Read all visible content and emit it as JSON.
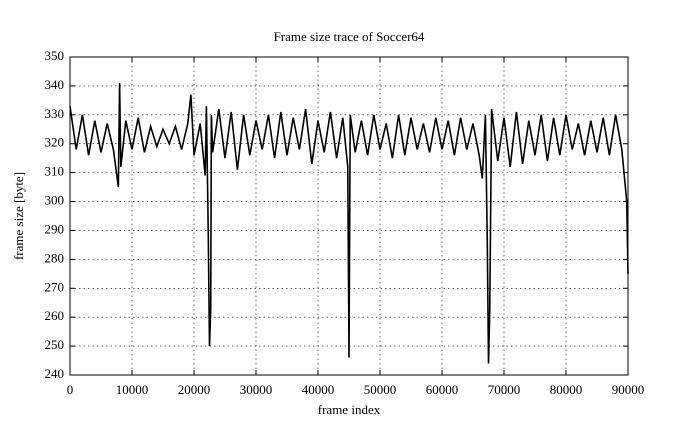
{
  "chart_data": {
    "type": "line",
    "title": "Frame size trace of Soccer64",
    "x_label": "frame index",
    "y_label": "frame size [byte]",
    "x": [
      0,
      1000,
      2000,
      3000,
      4000,
      5000,
      6000,
      7000,
      7800,
      8000,
      8200,
      9000,
      10000,
      11000,
      12000,
      13000,
      14000,
      15000,
      16000,
      17000,
      18000,
      19000,
      19500,
      20000,
      21000,
      21800,
      22000,
      22300,
      22500,
      22700,
      22800,
      23000,
      24000,
      25000,
      26000,
      27000,
      28000,
      29000,
      30000,
      31000,
      32000,
      33000,
      34000,
      35000,
      36000,
      37000,
      38000,
      39000,
      40000,
      41000,
      42000,
      43000,
      44000,
      44800,
      45000,
      45200,
      46000,
      47000,
      48000,
      49000,
      50000,
      51000,
      52000,
      53000,
      54000,
      55000,
      56000,
      57000,
      58000,
      59000,
      60000,
      61000,
      62000,
      63000,
      64000,
      65000,
      66000,
      66500,
      67000,
      67300,
      67500,
      67700,
      68000,
      69000,
      70000,
      71000,
      72000,
      73000,
      74000,
      75000,
      76000,
      77000,
      78000,
      79000,
      80000,
      81000,
      82000,
      83000,
      84000,
      85000,
      86000,
      87000,
      88000,
      89000,
      89800,
      90000
    ],
    "series": [
      {
        "color": "#000000",
        "values": [
          333,
          318,
          330,
          316,
          328,
          317,
          327,
          318,
          305,
          341,
          312,
          328,
          318,
          329,
          317,
          326,
          319,
          325,
          320,
          326,
          318,
          327,
          337,
          316,
          327,
          309,
          333,
          289,
          250,
          263,
          330,
          317,
          332,
          315,
          331,
          311,
          330,
          316,
          328,
          318,
          330,
          315,
          331,
          316,
          329,
          318,
          332,
          313,
          328,
          317,
          331,
          315,
          329,
          312,
          246,
          330,
          317,
          328,
          316,
          330,
          318,
          327,
          315,
          330,
          316,
          329,
          318,
          327,
          317,
          329,
          318,
          328,
          316,
          329,
          318,
          327,
          316,
          308,
          330,
          287,
          244,
          262,
          332,
          314,
          329,
          312,
          331,
          313,
          328,
          316,
          330,
          314,
          329,
          316,
          330,
          318,
          327,
          316,
          328,
          317,
          329,
          316,
          330,
          318,
          300,
          275
        ]
      }
    ],
    "xlim": [
      0,
      90000
    ],
    "ylim": [
      240,
      350
    ],
    "xticks": [
      0,
      10000,
      20000,
      30000,
      40000,
      50000,
      60000,
      70000,
      80000,
      90000
    ],
    "yticks": [
      240,
      250,
      260,
      270,
      280,
      290,
      300,
      310,
      320,
      330,
      340,
      350
    ],
    "grid": true
  }
}
